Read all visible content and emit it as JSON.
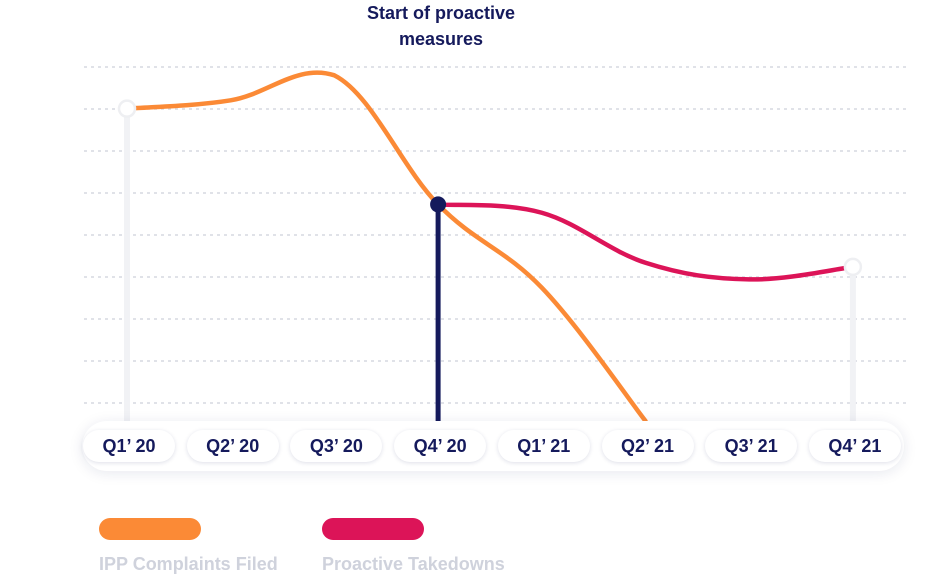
{
  "chart_data": {
    "type": "line",
    "categories": [
      "Q1’ 20",
      "Q2’ 20",
      "Q3’ 20",
      "Q4’ 20",
      "Q1’ 21",
      "Q2’ 21",
      "Q3’ 21",
      "Q4’ 21"
    ],
    "series": [
      {
        "name": "IPP Complaints Filed",
        "color": "#fb8a36",
        "values": [
          75,
          77,
          83,
          52,
          32,
          0,
          null,
          null
        ]
      },
      {
        "name": "Proactive Takedowns",
        "color": "#dc1458",
        "values": [
          null,
          null,
          null,
          52,
          50,
          38,
          34,
          37
        ]
      }
    ],
    "annotation": {
      "text_line1": "Start of proactive",
      "text_line2": "measures",
      "at": "Q4’ 20",
      "color": "#151a5c"
    },
    "ylim": [
      0,
      85
    ],
    "grid": true,
    "legend_position": "bottom-left"
  }
}
